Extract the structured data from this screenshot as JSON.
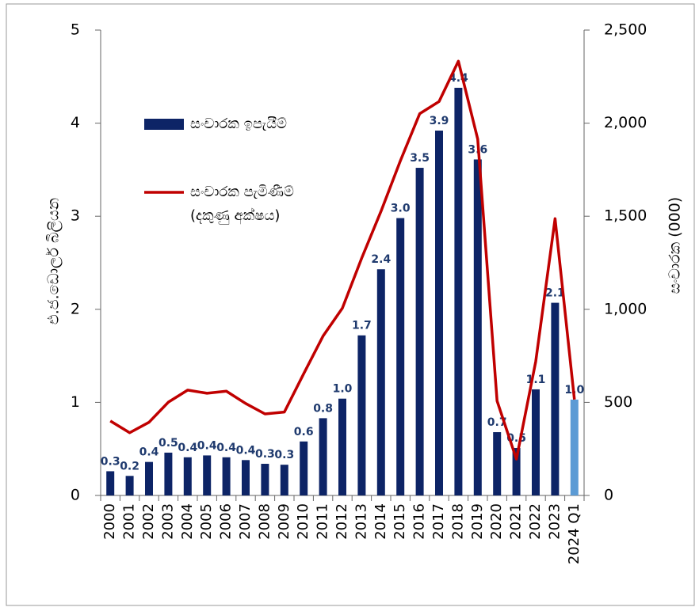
{
  "chart_data": {
    "type": "bar_line",
    "ylabel": "එ.ජ.ඩොලර් බිලියන",
    "y2label": "සංචාරක (000)",
    "categories": [
      "2000",
      "2001",
      "2002",
      "2003",
      "2004",
      "2005",
      "2006",
      "2007",
      "2008",
      "2009",
      "2010",
      "2011",
      "2012",
      "2013",
      "2014",
      "2015",
      "2016",
      "2017",
      "2018",
      "2019",
      "2020",
      "2021",
      "2022",
      "2023",
      "2024 Q1"
    ],
    "series": [
      {
        "name": "සංචාරක ඉපැයීම්",
        "type": "bar",
        "color": "#0d2466",
        "colors": [
          "#0d2466",
          "#0d2466",
          "#0d2466",
          "#0d2466",
          "#0d2466",
          "#0d2466",
          "#0d2466",
          "#0d2466",
          "#0d2466",
          "#0d2466",
          "#0d2466",
          "#0d2466",
          "#0d2466",
          "#0d2466",
          "#0d2466",
          "#0d2466",
          "#0d2466",
          "#0d2466",
          "#0d2466",
          "#0d2466",
          "#0d2466",
          "#0d2466",
          "#0d2466",
          "#0d2466",
          "#5b9bd5"
        ],
        "values": [
          0.26,
          0.21,
          0.36,
          0.46,
          0.41,
          0.43,
          0.41,
          0.38,
          0.34,
          0.33,
          0.58,
          0.83,
          1.04,
          1.72,
          2.43,
          2.98,
          3.52,
          3.92,
          4.38,
          3.61,
          0.68,
          0.51,
          1.14,
          2.07,
          1.03
        ],
        "value_labels": [
          "0.3",
          "0.2",
          "0.4",
          "0.5",
          "0.4",
          "0.4",
          "0.4",
          "0.4",
          "0.3",
          "0.3",
          "0.6",
          "0.8",
          "1.0",
          "1.7",
          "2.4",
          "3.0",
          "3.5",
          "3.9",
          "4.4",
          "3.6",
          "0.7",
          "0.5",
          "1.1",
          "2.1",
          "1.0"
        ]
      },
      {
        "name": "සංචාරක පැමිණීම්",
        "name_note": "(දකුණු අක්ෂය)",
        "type": "line",
        "axis": "y2",
        "color": "#c00000",
        "values": [
          400,
          337,
          393,
          501,
          566,
          549,
          560,
          494,
          438,
          448,
          654,
          856,
          1006,
          1275,
          1527,
          1798,
          2051,
          2116,
          2333,
          1914,
          508,
          195,
          720,
          1487,
          515
        ]
      }
    ],
    "ylim": [
      0,
      5
    ],
    "yticks": [
      0,
      1,
      2,
      3,
      4,
      5
    ],
    "y2lim": [
      0,
      2500
    ],
    "y2ticks": [
      0,
      500,
      {
        "value": 1000,
        "label": "1,000"
      },
      {
        "value": 1500,
        "label": "1,500"
      },
      {
        "value": 2000,
        "label": "2,000"
      },
      {
        "value": 2500,
        "label": "2,500"
      }
    ]
  }
}
